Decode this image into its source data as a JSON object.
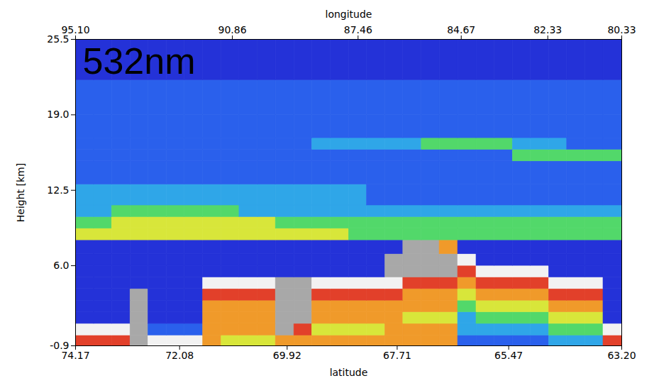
{
  "chart_data": {
    "type": "heatmap",
    "annotations": [
      "532nm"
    ],
    "xlabel": "latitude",
    "x2label": "longitude",
    "ylabel": "Height [km]",
    "xlim": [
      74.17,
      63.2
    ],
    "xticks": [
      74.17,
      72.08,
      69.92,
      67.71,
      65.47,
      {
        "value": 63.2,
        "label": "63.20"
      }
    ],
    "x2lim": [
      95.1,
      80.33
    ],
    "x2ticks": [
      {
        "value": 95.1,
        "label": "95.10"
      },
      90.86,
      87.46,
      84.67,
      82.33,
      80.33
    ],
    "ylim": [
      -0.9,
      25.5
    ],
    "yticks": [
      -0.9,
      {
        "value": 6.0,
        "label": "6.0"
      },
      12.5,
      {
        "value": 19.0,
        "label": "19.0"
      },
      25.5
    ],
    "zlim": [
      0,
      9
    ],
    "x_edges": [
      74.17,
      73.8,
      73.44,
      73.07,
      72.71,
      72.34,
      71.98,
      71.61,
      71.24,
      70.88,
      70.51,
      70.15,
      69.78,
      69.42,
      69.05,
      68.68,
      68.32,
      67.95,
      67.59,
      67.22,
      66.86,
      66.49,
      66.12,
      65.76,
      65.39,
      65.03,
      64.66,
      64.3,
      63.93,
      63.57,
      63.2
    ],
    "y_edges": [
      -0.9,
      0,
      1,
      2,
      3,
      4,
      5,
      6,
      7,
      8.2,
      9.2,
      10.2,
      11.2,
      13,
      15,
      16,
      17,
      19,
      22,
      25.5
    ],
    "values": [
      [
        7,
        7,
        7,
        8,
        9,
        9,
        9,
        6,
        5,
        5,
        5,
        6,
        6,
        6,
        6,
        6,
        6,
        6,
        6,
        6,
        6,
        2,
        2,
        2,
        2,
        2,
        3,
        3,
        3,
        7
      ],
      [
        9,
        9,
        9,
        8,
        2,
        2,
        2,
        6,
        6,
        6,
        6,
        8,
        7,
        5,
        5,
        5,
        5,
        6,
        6,
        6,
        6,
        3,
        3,
        3,
        3,
        3,
        4,
        4,
        4,
        9
      ],
      [
        1,
        1,
        1,
        8,
        1,
        1,
        1,
        6,
        6,
        6,
        6,
        8,
        8,
        6,
        6,
        6,
        6,
        6,
        5,
        5,
        5,
        3,
        4,
        4,
        4,
        4,
        5,
        5,
        5,
        1
      ],
      [
        1,
        1,
        1,
        8,
        1,
        1,
        1,
        6,
        6,
        6,
        6,
        8,
        8,
        6,
        6,
        6,
        6,
        6,
        6,
        6,
        6,
        4,
        5,
        5,
        5,
        5,
        6,
        6,
        6,
        1
      ],
      [
        1,
        1,
        1,
        8,
        1,
        1,
        1,
        7,
        7,
        7,
        7,
        8,
        8,
        7,
        7,
        7,
        7,
        7,
        6,
        6,
        6,
        5,
        6,
        6,
        6,
        6,
        7,
        7,
        7,
        1
      ],
      [
        1,
        1,
        1,
        1,
        1,
        1,
        1,
        9,
        9,
        9,
        9,
        8,
        8,
        9,
        9,
        9,
        9,
        9,
        7,
        7,
        7,
        6,
        7,
        7,
        7,
        7,
        9,
        9,
        9,
        1
      ],
      [
        1,
        1,
        1,
        1,
        1,
        1,
        1,
        1,
        1,
        1,
        1,
        1,
        1,
        1,
        1,
        1,
        1,
        8,
        8,
        8,
        8,
        7,
        9,
        9,
        9,
        9,
        1,
        1,
        1,
        1
      ],
      [
        1,
        1,
        1,
        1,
        1,
        1,
        1,
        1,
        1,
        1,
        1,
        1,
        1,
        1,
        1,
        1,
        1,
        8,
        8,
        8,
        8,
        9,
        1,
        1,
        1,
        1,
        1,
        1,
        1,
        1
      ],
      [
        1,
        1,
        1,
        1,
        1,
        1,
        1,
        1,
        1,
        1,
        1,
        1,
        1,
        1,
        1,
        1,
        1,
        1,
        8,
        8,
        6,
        1,
        1,
        1,
        1,
        1,
        1,
        1,
        1,
        1
      ],
      [
        5,
        5,
        5,
        5,
        5,
        5,
        5,
        5,
        5,
        5,
        5,
        5,
        5,
        5,
        5,
        4,
        4,
        4,
        4,
        4,
        4,
        4,
        4,
        4,
        4,
        4,
        4,
        4,
        4,
        4
      ],
      [
        4,
        4,
        5,
        5,
        5,
        5,
        5,
        5,
        5,
        5,
        5,
        4,
        4,
        4,
        4,
        4,
        4,
        4,
        4,
        4,
        4,
        4,
        4,
        4,
        4,
        4,
        4,
        4,
        4,
        4
      ],
      [
        3,
        3,
        4,
        4,
        4,
        4,
        4,
        4,
        4,
        3,
        3,
        3,
        3,
        3,
        3,
        3,
        3,
        3,
        3,
        3,
        3,
        3,
        3,
        3,
        3,
        3,
        3,
        3,
        3,
        3
      ],
      [
        3,
        3,
        3,
        3,
        3,
        3,
        3,
        3,
        3,
        3,
        3,
        3,
        3,
        3,
        3,
        3,
        2,
        2,
        2,
        2,
        2,
        2,
        2,
        2,
        2,
        2,
        2,
        2,
        2,
        2
      ],
      [
        2,
        2,
        2,
        2,
        2,
        2,
        2,
        2,
        2,
        2,
        2,
        2,
        2,
        2,
        2,
        2,
        2,
        2,
        2,
        2,
        2,
        2,
        2,
        2,
        2,
        2,
        2,
        2,
        2,
        2
      ],
      [
        2,
        2,
        2,
        2,
        2,
        2,
        2,
        2,
        2,
        2,
        2,
        2,
        2,
        2,
        2,
        2,
        2,
        2,
        2,
        2,
        2,
        2,
        2,
        2,
        4,
        4,
        4,
        4,
        4,
        4
      ],
      [
        2,
        2,
        2,
        2,
        2,
        2,
        2,
        2,
        2,
        2,
        2,
        2,
        2,
        3,
        3,
        3,
        3,
        3,
        3,
        4,
        4,
        4,
        4,
        4,
        3,
        3,
        3,
        2,
        2,
        2
      ],
      [
        2,
        2,
        2,
        2,
        2,
        2,
        2,
        2,
        2,
        2,
        2,
        2,
        2,
        2,
        2,
        2,
        2,
        2,
        2,
        2,
        2,
        2,
        2,
        2,
        2,
        2,
        2,
        2,
        2,
        2
      ],
      [
        2,
        2,
        2,
        2,
        2,
        2,
        2,
        2,
        2,
        2,
        2,
        2,
        2,
        2,
        2,
        2,
        2,
        2,
        2,
        2,
        2,
        2,
        2,
        2,
        2,
        2,
        2,
        2,
        2,
        2
      ],
      [
        1,
        1,
        1,
        1,
        1,
        1,
        1,
        1,
        1,
        1,
        1,
        1,
        1,
        1,
        1,
        1,
        1,
        1,
        1,
        1,
        1,
        1,
        1,
        1,
        1,
        1,
        1,
        1,
        1,
        1
      ]
    ]
  }
}
